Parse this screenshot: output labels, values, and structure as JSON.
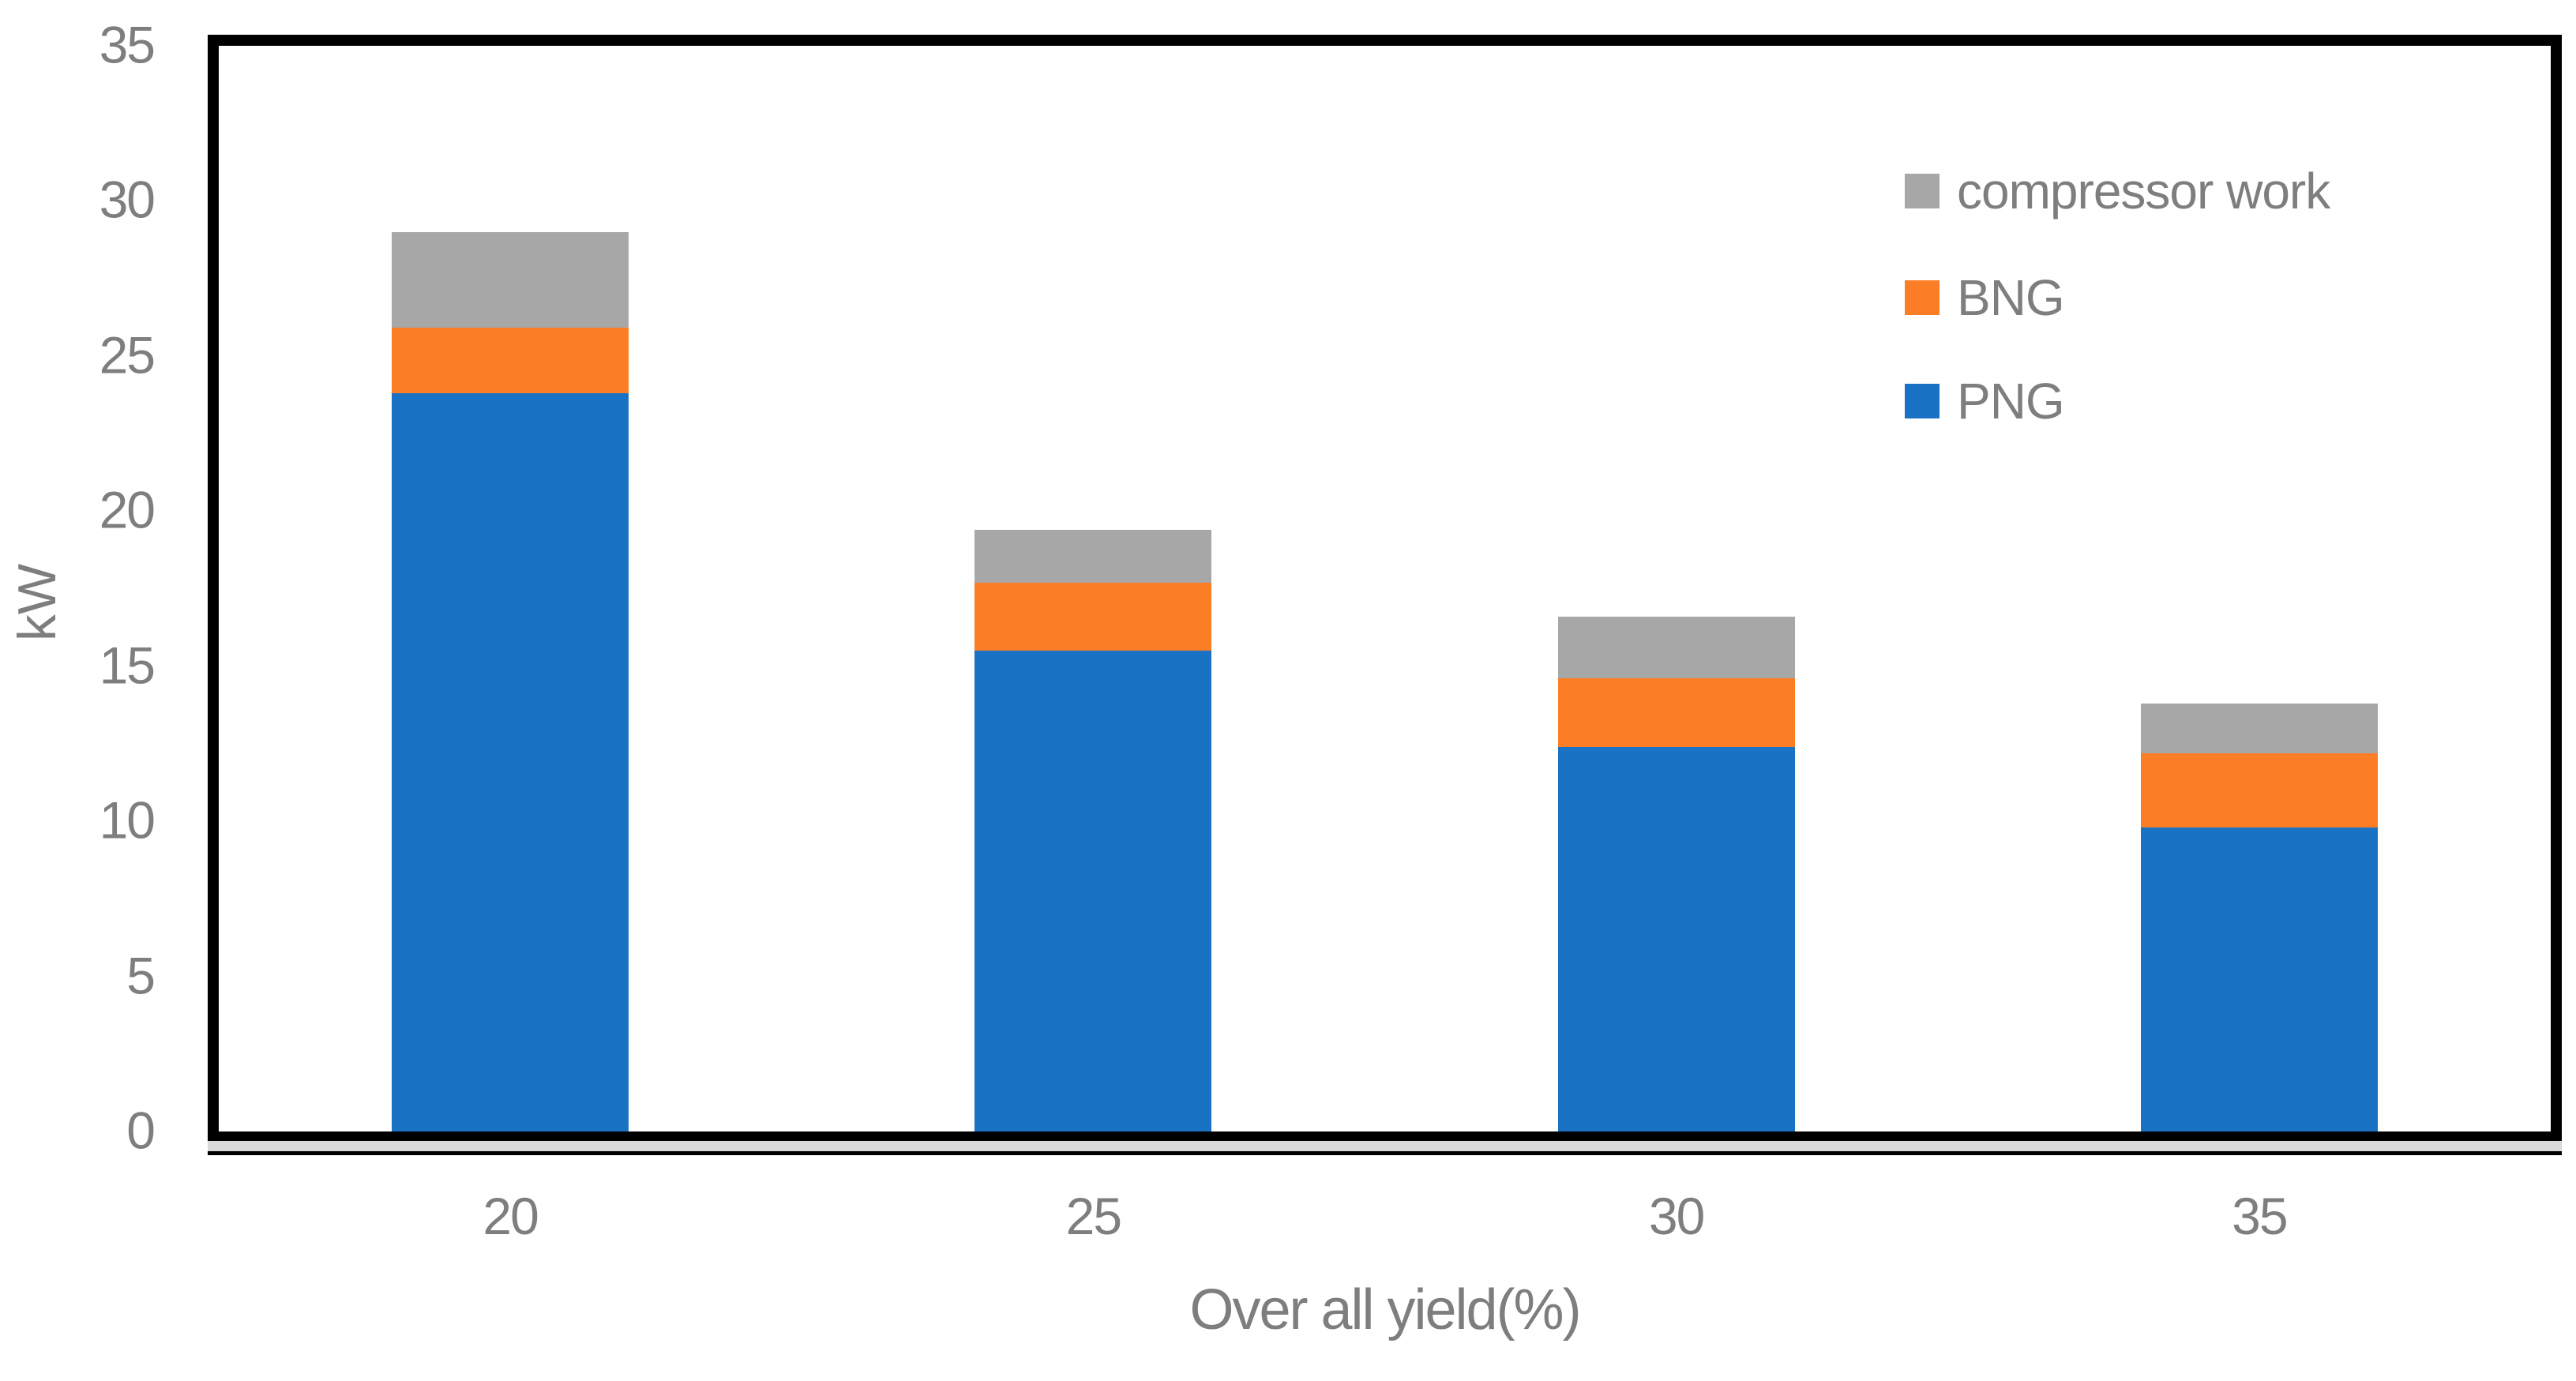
{
  "chart_data": {
    "type": "bar",
    "stacked": true,
    "title": "",
    "categories": [
      "20",
      "25",
      "30",
      "35"
    ],
    "series": [
      {
        "name": "PNG",
        "color": "#1A72C5",
        "values": [
          23.8,
          15.5,
          12.4,
          9.8
        ]
      },
      {
        "name": "BNG",
        "color": "#FB7D25",
        "values": [
          2.1,
          2.2,
          2.2,
          2.4
        ]
      },
      {
        "name": "compressor work",
        "color": "#A7A7A7",
        "values": [
          3.1,
          1.7,
          2.0,
          1.6
        ]
      }
    ],
    "xlabel": "Over all yield(%)",
    "ylabel": "kW",
    "ylim": [
      0,
      35
    ],
    "yticks": [
      0,
      5,
      10,
      15,
      20,
      25,
      30,
      35
    ],
    "grid": false,
    "legend_position": "upper-right",
    "legend": [
      {
        "label": "compressor work",
        "color": "#A7A7A7"
      },
      {
        "label": "BNG",
        "color": "#FB7D25"
      },
      {
        "label": "PNG",
        "color": "#1A72C5"
      }
    ],
    "text_color": "#7E7E7E",
    "axis_border_color": "#000000",
    "axis_shadow_color": "#D9D9D9"
  }
}
